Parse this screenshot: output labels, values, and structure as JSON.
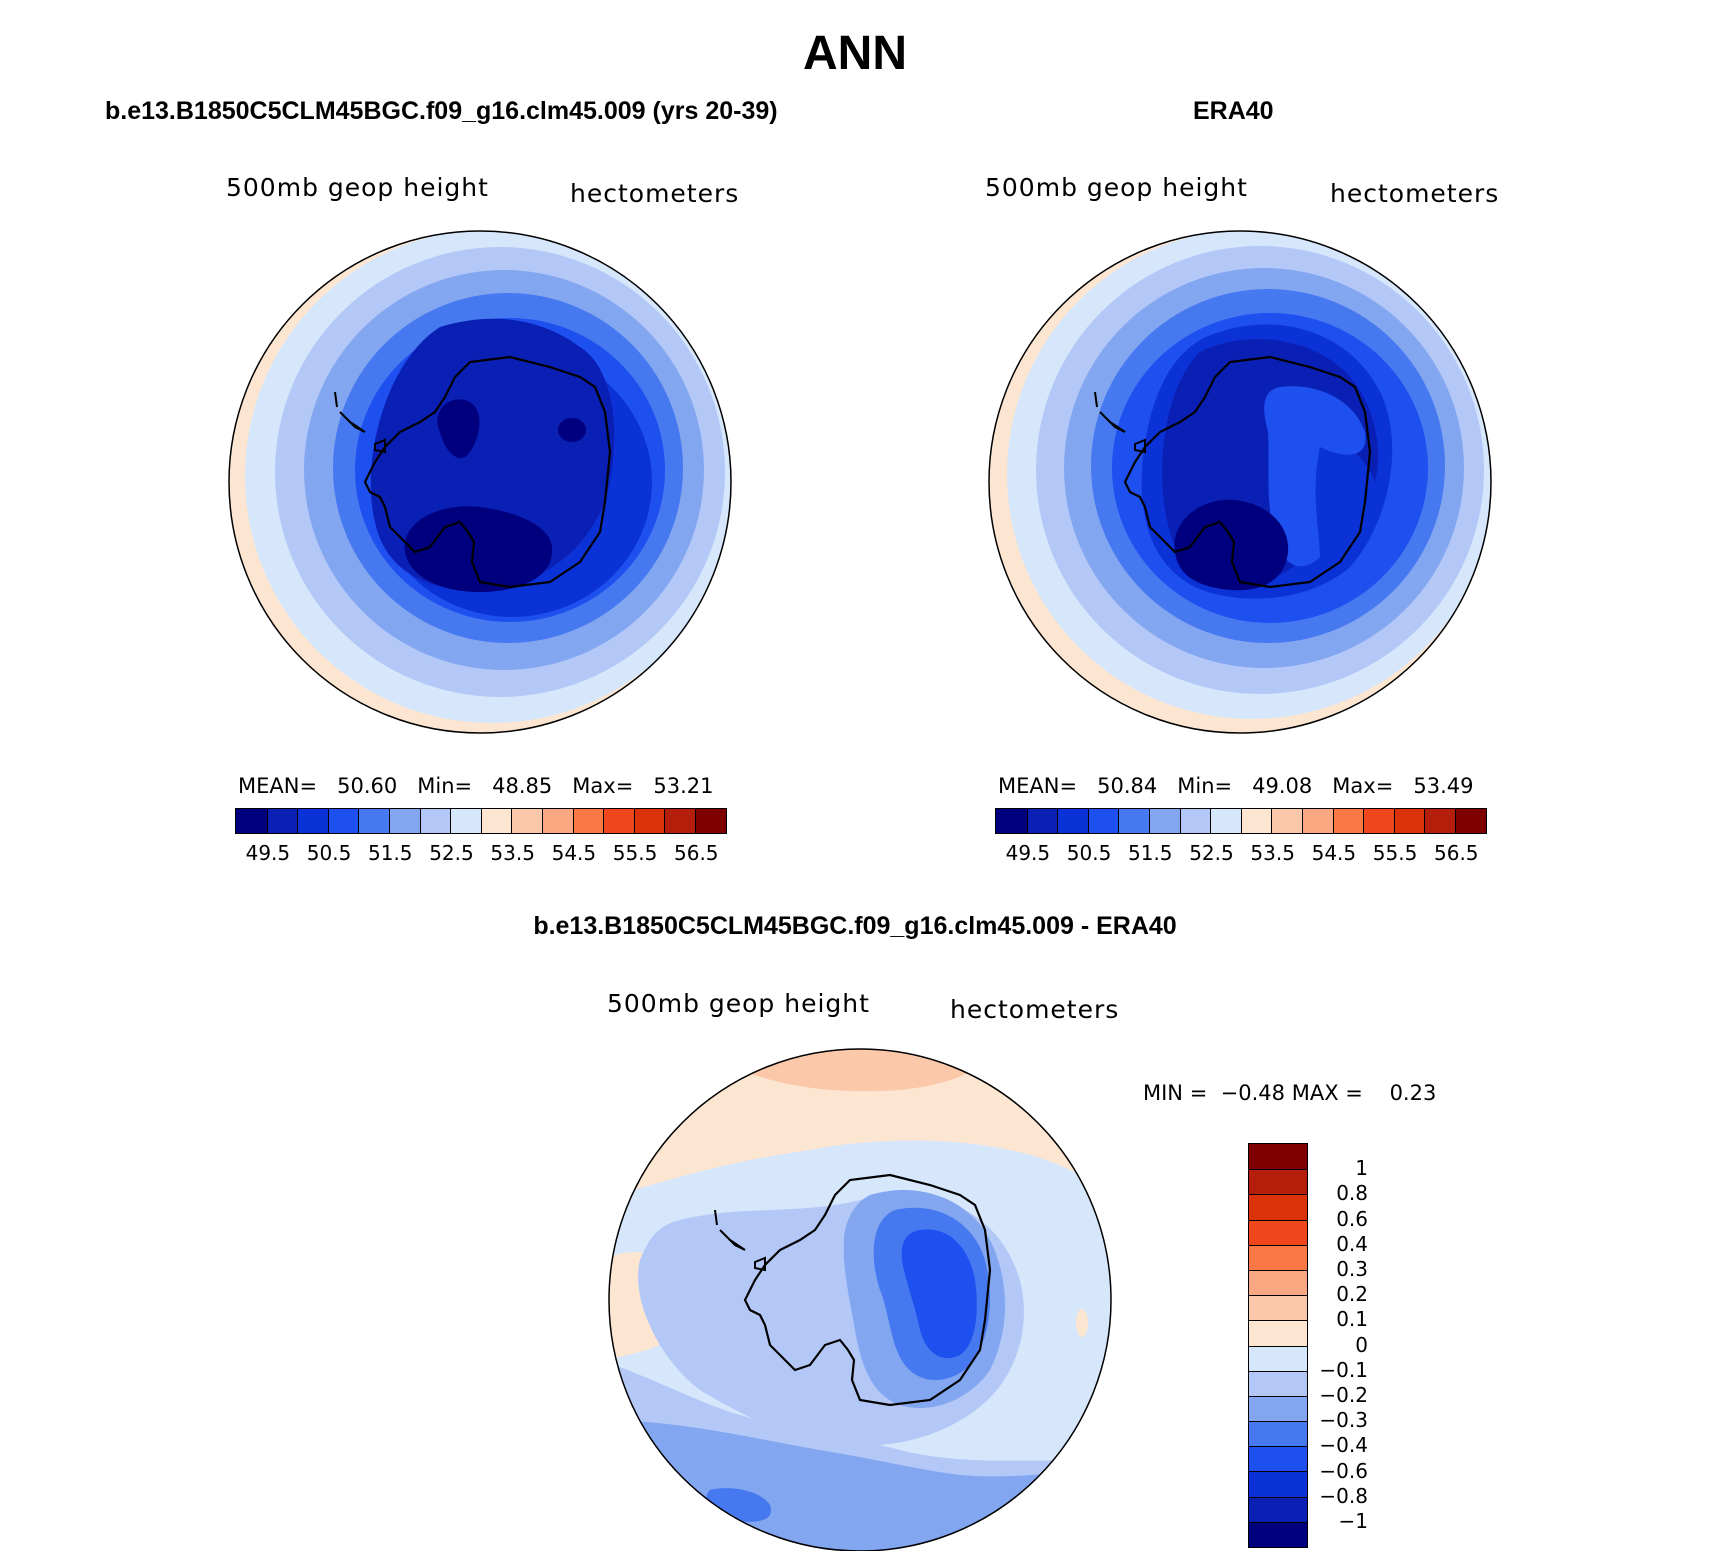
{
  "main_title": "ANN",
  "panels": [
    {
      "title": "b.e13.B1850C5CLM45BGC.f09_g16.clm45.009 (yrs 20-39)",
      "variable_label": "500mb geop height",
      "units_label": "hectometers",
      "stats": {
        "mean_label": "MEAN=",
        "mean": "50.60",
        "min_label": "Min=",
        "min": "48.85",
        "max_label": "Max=",
        "max": "53.21"
      }
    },
    {
      "title": "ERA40",
      "variable_label": "500mb geop height",
      "units_label": "hectometers",
      "stats": {
        "mean_label": "MEAN=",
        "mean": "50.84",
        "min_label": "Min=",
        "min": "49.08",
        "max_label": "Max=",
        "max": "53.49"
      }
    },
    {
      "title": "b.e13.B1850C5CLM45BGC.f09_g16.clm45.009 - ERA40",
      "variable_label": "500mb geop height",
      "units_label": "hectometers",
      "stats": {
        "min_label": "MIN =",
        "min": "−0.48",
        "max_label": "MAX =",
        "max": "0.23"
      }
    }
  ],
  "field_colorbar": {
    "colors": [
      "#00007f",
      "#0a1fb4",
      "#0a32d6",
      "#1e50f0",
      "#4678f0",
      "#82a6f0",
      "#b4c8f8",
      "#d6e6fb",
      "#fce6d2",
      "#fbc8aa",
      "#fba882",
      "#fa7846",
      "#f0461e",
      "#dc320a",
      "#b41e0a",
      "#7f0000"
    ],
    "labels": [
      "49.5",
      "50.5",
      "51.5",
      "52.5",
      "53.5",
      "54.5",
      "55.5",
      "56.5"
    ]
  },
  "diff_colorbar": {
    "colors": [
      "#7f0000",
      "#b41e0a",
      "#dc320a",
      "#f0461e",
      "#fa7846",
      "#fba882",
      "#fbc8aa",
      "#fce6d2",
      "#d6e6fb",
      "#b4c8f8",
      "#82a6f0",
      "#4678f0",
      "#1e50f0",
      "#0a32d6",
      "#0a1fb4",
      "#00007f"
    ],
    "labels": [
      "1",
      "0.8",
      "0.6",
      "0.4",
      "0.3",
      "0.2",
      "0.1",
      "0",
      "−0.1",
      "−0.2",
      "−0.3",
      "−0.4",
      "−0.6",
      "−0.8",
      "−1"
    ]
  }
}
